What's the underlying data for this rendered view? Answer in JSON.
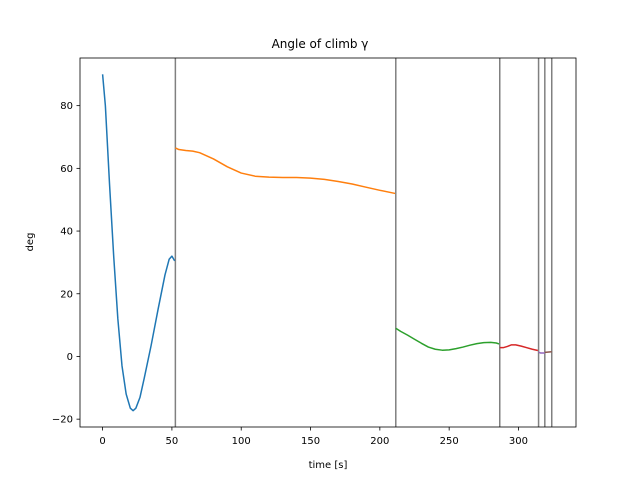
{
  "chart_data": {
    "type": "line",
    "title": "Angle of climb γ",
    "xlabel": "time [s]",
    "ylabel": "deg",
    "xlim": [
      -16.3,
      341.5
    ],
    "ylim": [
      -22.5,
      95.2
    ],
    "x_ticks": [
      0,
      50,
      100,
      150,
      200,
      250,
      300
    ],
    "y_ticks": [
      -20,
      0,
      20,
      40,
      60,
      80
    ],
    "grid": false,
    "phase_boundaries": [
      52.5,
      211.5,
      286.5,
      314.5,
      319.0,
      324.0
    ],
    "phase_line_color": "#808080",
    "series": [
      {
        "color": "#1f77b4",
        "points": [
          [
            0,
            90
          ],
          [
            2,
            80
          ],
          [
            5,
            55
          ],
          [
            8,
            32
          ],
          [
            11,
            12
          ],
          [
            14,
            -3
          ],
          [
            17,
            -12
          ],
          [
            20,
            -16.5
          ],
          [
            22,
            -17.3
          ],
          [
            24,
            -16.5
          ],
          [
            27,
            -13
          ],
          [
            30,
            -7
          ],
          [
            35,
            3.5
          ],
          [
            40,
            15
          ],
          [
            45,
            26
          ],
          [
            48,
            31
          ],
          [
            50,
            32
          ],
          [
            52,
            30.5
          ]
        ]
      },
      {
        "color": "#ff7f0e",
        "points": [
          [
            52.5,
            66.5
          ],
          [
            55,
            66
          ],
          [
            60,
            65.7
          ],
          [
            65,
            65.5
          ],
          [
            70,
            65
          ],
          [
            80,
            63
          ],
          [
            90,
            60.5
          ],
          [
            100,
            58.5
          ],
          [
            110,
            57.5
          ],
          [
            120,
            57.2
          ],
          [
            130,
            57.1
          ],
          [
            140,
            57.1
          ],
          [
            150,
            56.9
          ],
          [
            160,
            56.5
          ],
          [
            170,
            55.8
          ],
          [
            180,
            55
          ],
          [
            190,
            54
          ],
          [
            200,
            53
          ],
          [
            211,
            52
          ]
        ]
      },
      {
        "color": "#2ca02c",
        "points": [
          [
            211.5,
            9
          ],
          [
            215,
            8
          ],
          [
            220,
            6.8
          ],
          [
            225,
            5.5
          ],
          [
            230,
            4.2
          ],
          [
            235,
            3
          ],
          [
            240,
            2.3
          ],
          [
            245,
            2
          ],
          [
            250,
            2.1
          ],
          [
            255,
            2.5
          ],
          [
            260,
            3
          ],
          [
            265,
            3.6
          ],
          [
            270,
            4.1
          ],
          [
            275,
            4.4
          ],
          [
            280,
            4.5
          ],
          [
            284,
            4.3
          ],
          [
            286,
            4
          ]
        ]
      },
      {
        "color": "#d62728",
        "points": [
          [
            286.5,
            2.8
          ],
          [
            289,
            2.8
          ],
          [
            292,
            3.2
          ],
          [
            295,
            3.7
          ],
          [
            298,
            3.7
          ],
          [
            302,
            3.3
          ],
          [
            306,
            2.8
          ],
          [
            310,
            2.3
          ],
          [
            314,
            1.9
          ]
        ]
      },
      {
        "color": "#9467bd",
        "points": [
          [
            314.5,
            1.4
          ],
          [
            316,
            1.1
          ],
          [
            319,
            1.1
          ]
        ]
      },
      {
        "color": "#8c564b",
        "points": [
          [
            319,
            1.3
          ],
          [
            321,
            1.4
          ],
          [
            324,
            1.5
          ]
        ]
      }
    ]
  }
}
